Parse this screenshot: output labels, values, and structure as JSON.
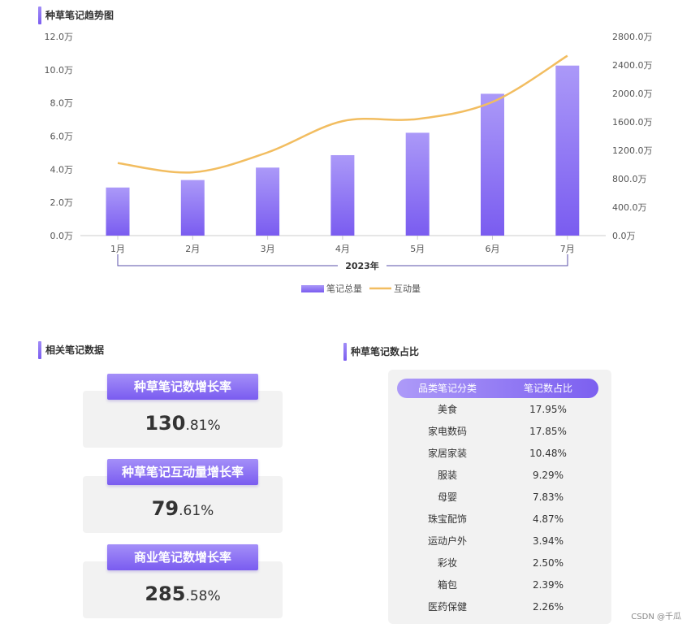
{
  "sections": {
    "trend_title": "种草笔记趋势图",
    "stats_title": "相关笔记数据",
    "share_title": "种草笔记数占比"
  },
  "chart_data": {
    "type": "bar",
    "title": "种草笔记趋势图",
    "categories": [
      "1月",
      "2月",
      "3月",
      "4月",
      "5月",
      "6月",
      "7月"
    ],
    "x_group_label": "2023年",
    "series": [
      {
        "name": "笔记总量",
        "kind": "bar",
        "axis": "left",
        "color": "#8066f2",
        "values": [
          2.9,
          3.35,
          4.1,
          4.85,
          6.2,
          8.55,
          10.25
        ]
      },
      {
        "name": "互动量",
        "kind": "line",
        "axis": "right",
        "color": "#f2bd60",
        "values": [
          1020,
          890,
          1170,
          1610,
          1640,
          1880,
          2530
        ]
      }
    ],
    "y_left": {
      "min": 0,
      "max": 12,
      "ticks": [
        "0.0万",
        "2.0万",
        "4.0万",
        "6.0万",
        "8.0万",
        "10.0万",
        "12.0万"
      ]
    },
    "y_right": {
      "min": 0,
      "max": 2800,
      "ticks": [
        "0.0万",
        "400.0万",
        "800.0万",
        "1200.0万",
        "1600.0万",
        "2000.0万",
        "2400.0万",
        "2800.0万"
      ]
    },
    "grid": false,
    "legend": "bottom-center"
  },
  "stats": [
    {
      "label": "种草笔记数增长率",
      "value_int": "130",
      "value_dec": ".81%"
    },
    {
      "label": "种草笔记互动量增长率",
      "value_int": "79",
      "value_dec": ".61%"
    },
    {
      "label": "商业笔记数增长率",
      "value_int": "285",
      "value_dec": ".58%"
    }
  ],
  "table": {
    "headers": [
      "品类笔记分类",
      "笔记数占比"
    ],
    "rows": [
      [
        "美食",
        "17.95%"
      ],
      [
        "家电数码",
        "17.85%"
      ],
      [
        "家居家装",
        "10.48%"
      ],
      [
        "服装",
        "9.29%"
      ],
      [
        "母婴",
        "7.83%"
      ],
      [
        "珠宝配饰",
        "4.87%"
      ],
      [
        "运动户外",
        "3.94%"
      ],
      [
        "彩妆",
        "2.50%"
      ],
      [
        "箱包",
        "2.39%"
      ],
      [
        "医药保健",
        "2.26%"
      ]
    ]
  },
  "watermark": "CSDN @千瓜"
}
